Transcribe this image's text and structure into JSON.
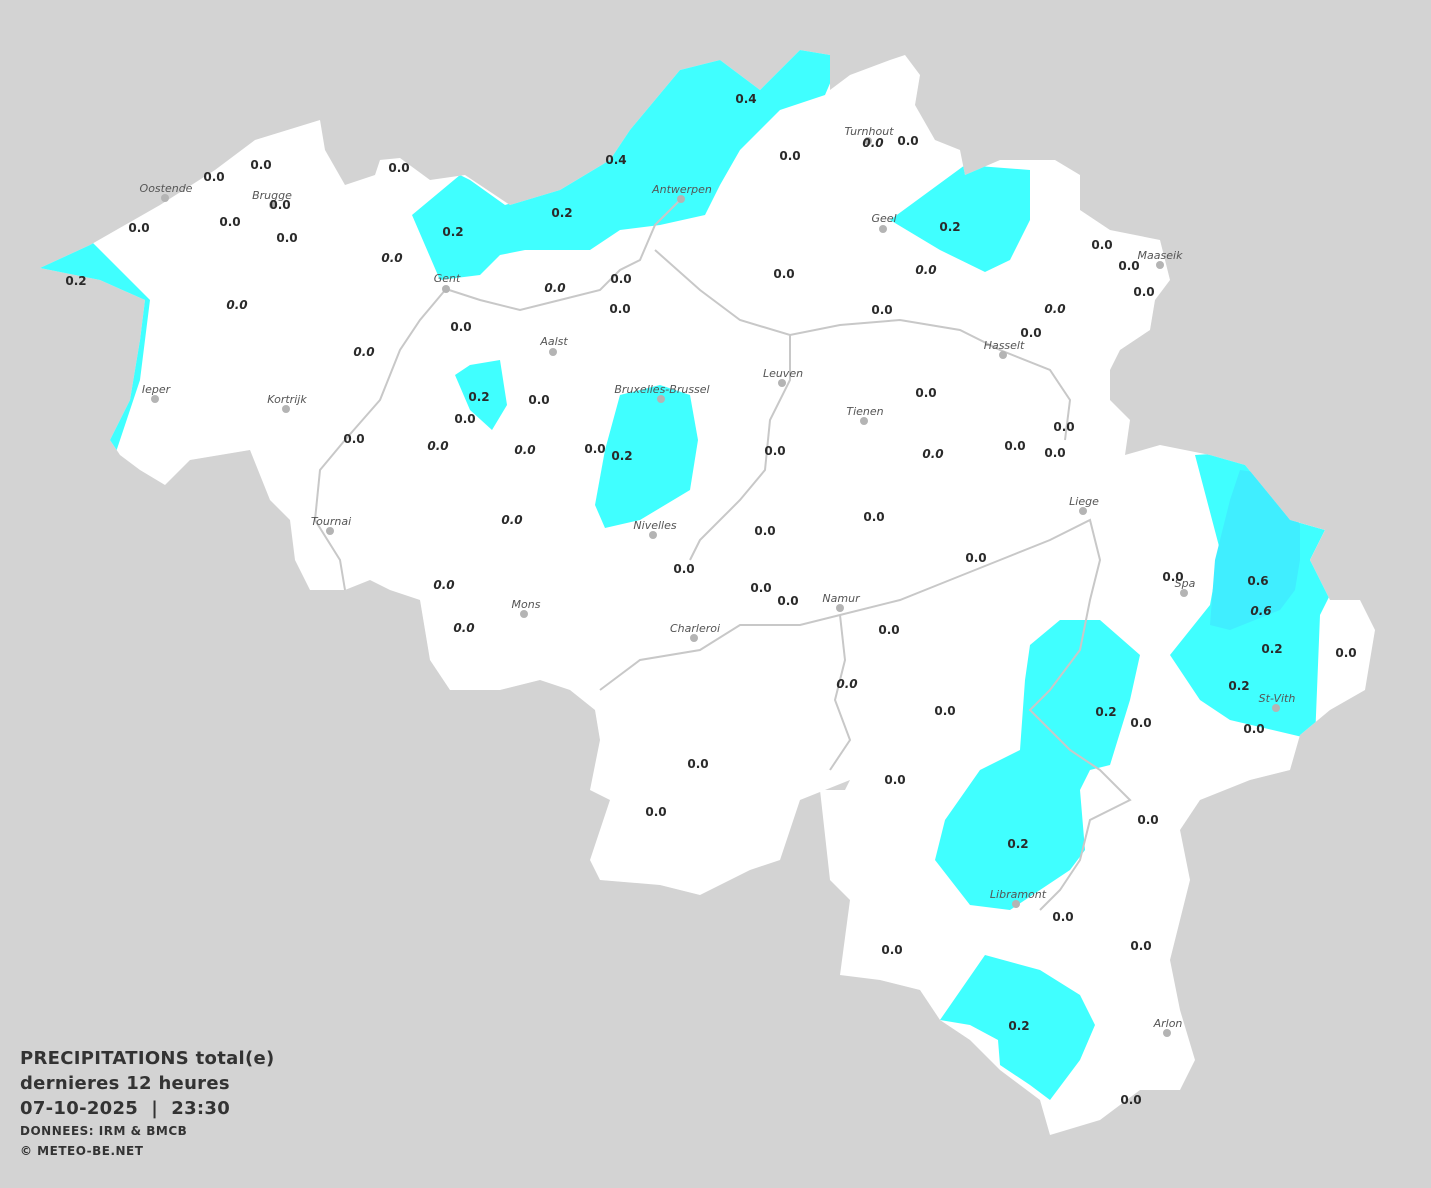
{
  "colors": {
    "background": "#d3d3d3",
    "land": "#ffffff",
    "precip_0_2": "#40ffff",
    "precip_0_6": "#40eeff",
    "text": "#333333",
    "river": "#c8c8c8"
  },
  "legend": {
    "title": "PRECIPITATIONS total(e)",
    "period": "dernieres 12 heures",
    "datetime": "07-10-2025  |  23:30",
    "source": "DONNEES: IRM & BMCB",
    "copyright": "© METEO-BE.NET"
  },
  "cities": [
    "Oostende",
    "Brugge",
    "Gent",
    "Antwerpen",
    "Turnhout",
    "Geel",
    "Maaseik",
    "Hasselt",
    "Aalst",
    "Bruxelles-Brussel",
    "Leuven",
    "Tienen",
    "Ieper",
    "Kortrijk",
    "Tournai",
    "Nivelles",
    "Liege",
    "Spa",
    "Mons",
    "Charleroi",
    "Namur",
    "St-Vith",
    "Libramont",
    "Arlon"
  ],
  "values": [
    {
      "v": "0.0"
    },
    {
      "v": "0.0"
    },
    {
      "v": "0.0"
    },
    {
      "v": "0.0"
    },
    {
      "v": "0.0"
    },
    {
      "v": "0.0"
    },
    {
      "v": "0.0"
    },
    {
      "v": "0.2"
    },
    {
      "v": "0.0",
      "italic": true
    },
    {
      "v": "0.0",
      "italic": true
    },
    {
      "v": "0.2"
    },
    {
      "v": "0.2"
    },
    {
      "v": "0.4"
    },
    {
      "v": "0.4"
    },
    {
      "v": "0.0"
    },
    {
      "v": "0.0",
      "italic": true
    },
    {
      "v": "0.0"
    },
    {
      "v": "0.2"
    },
    {
      "v": "0.0"
    },
    {
      "v": "0.0",
      "italic": true
    },
    {
      "v": "0.0"
    },
    {
      "v": "0.0"
    },
    {
      "v": "0.0"
    },
    {
      "v": "0.0",
      "italic": true
    },
    {
      "v": "0.0"
    },
    {
      "v": "0.0"
    },
    {
      "v": "0.0"
    },
    {
      "v": "0.0",
      "italic": true
    },
    {
      "v": "0.0"
    },
    {
      "v": "0.0"
    },
    {
      "v": "0.0",
      "italic": true
    },
    {
      "v": "0.2"
    },
    {
      "v": "0.0"
    },
    {
      "v": "0.0"
    },
    {
      "v": "0.0"
    },
    {
      "v": "0.0",
      "italic": true
    },
    {
      "v": "0.0",
      "italic": true
    },
    {
      "v": "0.0"
    },
    {
      "v": "0.2"
    },
    {
      "v": "0.0"
    },
    {
      "v": "0.0"
    },
    {
      "v": "0.0"
    },
    {
      "v": "0.0"
    },
    {
      "v": "0.0",
      "italic": true
    },
    {
      "v": "0.0"
    },
    {
      "v": "0.0",
      "italic": true
    },
    {
      "v": "0.0"
    },
    {
      "v": "0.0"
    },
    {
      "v": "0.0"
    },
    {
      "v": "0.0"
    },
    {
      "v": "0.0",
      "italic": true
    },
    {
      "v": "0.0"
    },
    {
      "v": "0.0"
    },
    {
      "v": "0.0",
      "italic": true
    },
    {
      "v": "0.0"
    },
    {
      "v": "0.0"
    },
    {
      "v": "0.6"
    },
    {
      "v": "0.6",
      "italic": true
    },
    {
      "v": "0.2"
    },
    {
      "v": "0.0"
    },
    {
      "v": "0.2"
    },
    {
      "v": "0.0",
      "italic": true
    },
    {
      "v": "0.0"
    },
    {
      "v": "0.2"
    },
    {
      "v": "0.0"
    },
    {
      "v": "0.0"
    },
    {
      "v": "0.0"
    },
    {
      "v": "0.0"
    },
    {
      "v": "0.0"
    },
    {
      "v": "0.0"
    },
    {
      "v": "0.2"
    },
    {
      "v": "0.0"
    },
    {
      "v": "0.0"
    },
    {
      "v": "0.0"
    },
    {
      "v": "0.2"
    },
    {
      "v": "0.0"
    }
  ]
}
